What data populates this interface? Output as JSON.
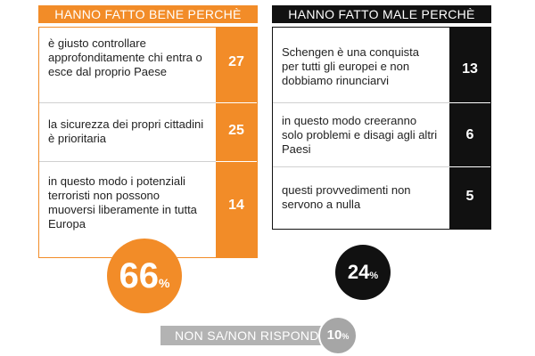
{
  "chart_data": {
    "type": "table",
    "panels": [
      {
        "title": "HANNO FATTO BENE PERCHÈ",
        "color": "#f28c28",
        "rows": [
          {
            "label": "è giusto controllare approfonditamente chi entra o esce dal proprio Paese",
            "value": 27
          },
          {
            "label": "la sicurezza dei propri cittadini è prioritaria",
            "value": 25
          },
          {
            "label": "in questo modo i potenziali terroristi non possono muoversi liberamente in tutta Europa",
            "value": 14
          }
        ],
        "total": {
          "value": "66",
          "unit": "%"
        }
      },
      {
        "title": "HANNO FATTO MALE PERCHÈ",
        "color": "#111111",
        "rows": [
          {
            "label": "Schengen è una conquista per tutti gli europei e non dobbiamo rinunciarvi",
            "value": 13
          },
          {
            "label": "in questo modo creeranno solo problemi e disagi agli altri Paesi",
            "value": 6
          },
          {
            "label": "questi provvedimenti non servono a nulla",
            "value": 5
          }
        ],
        "total": {
          "value": "24",
          "unit": "%"
        }
      }
    ],
    "no_answer": {
      "label": "NON SA/NON RISPONDE:",
      "value": "10",
      "unit": "%",
      "color": "#a6a6a6"
    }
  }
}
